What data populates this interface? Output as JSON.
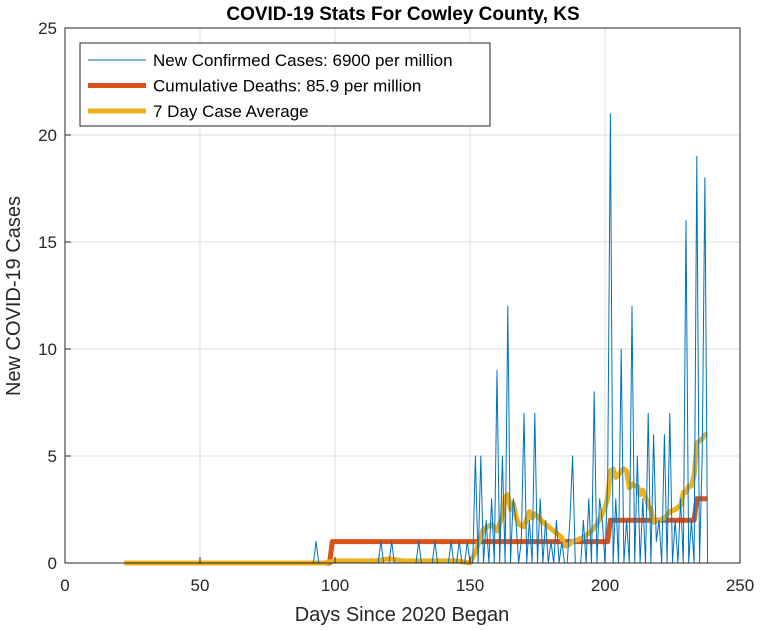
{
  "chart_data": {
    "type": "line",
    "title": "COVID-19 Stats For Cowley County, KS",
    "xlabel": "Days Since 2020 Began",
    "ylabel": "New COVID-19 Cases",
    "xlim": [
      0,
      250
    ],
    "ylim": [
      0,
      25
    ],
    "xticks": [
      "0",
      "50",
      "100",
      "150",
      "200",
      "250"
    ],
    "yticks": [
      "0",
      "5",
      "10",
      "15",
      "20",
      "25"
    ],
    "grid": true,
    "legend_position": "top-left",
    "series": [
      {
        "name": "New Confirmed Cases: 6900 per million",
        "color": "#0072BD",
        "x": [
          22,
          90,
          92,
          93,
          94,
          95,
          96,
          116,
          117,
          118,
          120,
          121,
          122,
          130,
          131,
          132,
          136,
          137,
          138,
          142,
          143,
          144,
          145,
          146,
          147,
          148,
          149,
          150,
          151,
          152,
          153,
          154,
          155,
          156,
          157,
          158,
          159,
          160,
          161,
          162,
          163,
          164,
          165,
          166,
          167,
          168,
          169,
          170,
          171,
          172,
          173,
          174,
          175,
          176,
          177,
          178,
          179,
          180,
          181,
          182,
          183,
          184,
          185,
          186,
          187,
          188,
          189,
          190,
          191,
          192,
          193,
          194,
          195,
          196,
          197,
          198,
          199,
          200,
          201,
          202,
          203,
          204,
          205,
          206,
          207,
          208,
          209,
          210,
          211,
          212,
          213,
          214,
          215,
          216,
          217,
          218,
          219,
          220,
          221,
          222,
          223,
          224,
          225,
          226,
          227,
          228,
          229,
          230,
          231,
          232,
          233,
          234,
          235,
          236,
          237,
          238
        ],
        "y": [
          0,
          0,
          0,
          1,
          0,
          0,
          0,
          0,
          1,
          0,
          0,
          1,
          0,
          0,
          1,
          0,
          0,
          1,
          0,
          0,
          1,
          0,
          0,
          1,
          0,
          0,
          1,
          0,
          0,
          5,
          0,
          5,
          0,
          2,
          0,
          3,
          0,
          9,
          0,
          5,
          0,
          12,
          0,
          3,
          2,
          0,
          1,
          7,
          0,
          2,
          0,
          7,
          0,
          3,
          0,
          2,
          0,
          1,
          0,
          2,
          0,
          1,
          0,
          0,
          2,
          5,
          0,
          0,
          0,
          2,
          0,
          3,
          0,
          8,
          0,
          3,
          2,
          0,
          4,
          21,
          0,
          3,
          0,
          10,
          0,
          2,
          0,
          12,
          0,
          5,
          0,
          3,
          0,
          7,
          0,
          6,
          1,
          2,
          0,
          6,
          0,
          7,
          0,
          2,
          0,
          3,
          0,
          16,
          0,
          2,
          0,
          19,
          0,
          5,
          18,
          0
        ]
      },
      {
        "name": "Cumulative Deaths: 85.9 per million",
        "color": "#D95319",
        "x": [
          22,
          98,
          99,
          100,
          185,
          186,
          200,
          201,
          202,
          220,
          221,
          232,
          233,
          234,
          238
        ],
        "y": [
          0,
          0,
          1,
          1,
          1,
          1,
          1,
          1,
          2,
          2,
          2,
          2,
          2,
          3,
          3
        ]
      },
      {
        "name": "7 Day Case Average",
        "color": "#EDB120",
        "x": [
          22,
          90,
          96,
          100,
          115,
          120,
          125,
          130,
          135,
          140,
          145,
          150,
          152,
          155,
          158,
          160,
          162,
          163,
          164,
          165,
          166,
          167,
          168,
          170,
          172,
          173,
          174,
          175,
          177,
          180,
          182,
          184,
          185,
          186,
          188,
          190,
          192,
          195,
          197,
          199,
          200,
          201,
          202,
          203,
          204,
          205,
          206,
          207,
          208,
          209,
          210,
          211,
          212,
          213,
          214,
          215,
          216,
          217,
          218,
          220,
          222,
          224,
          226,
          228,
          229,
          230,
          231,
          232,
          233,
          234,
          235,
          236,
          237,
          238
        ],
        "y": [
          0,
          0,
          0,
          0.1,
          0.1,
          0.2,
          0.1,
          0.1,
          0.1,
          0.1,
          0.1,
          0,
          0.5,
          1.6,
          1.8,
          1.5,
          2.2,
          3.1,
          3.2,
          2.5,
          2.8,
          2.2,
          1.8,
          1.7,
          2.4,
          2.1,
          2.3,
          2.2,
          1.9,
          1.6,
          1.4,
          1.2,
          0.8,
          0.8,
          1,
          1.1,
          1.2,
          1.5,
          1.8,
          2.3,
          2.6,
          3,
          4.3,
          4.4,
          4,
          4.1,
          4.3,
          4.4,
          4.3,
          3.5,
          3.7,
          3.6,
          3.6,
          3.2,
          3.4,
          3.1,
          2.7,
          2.5,
          1.9,
          2,
          2.1,
          2.4,
          2.5,
          2.7,
          3.3,
          3.3,
          3.6,
          3.6,
          4.1,
          5.6,
          5.7,
          5.8,
          6,
          6
        ]
      }
    ]
  }
}
